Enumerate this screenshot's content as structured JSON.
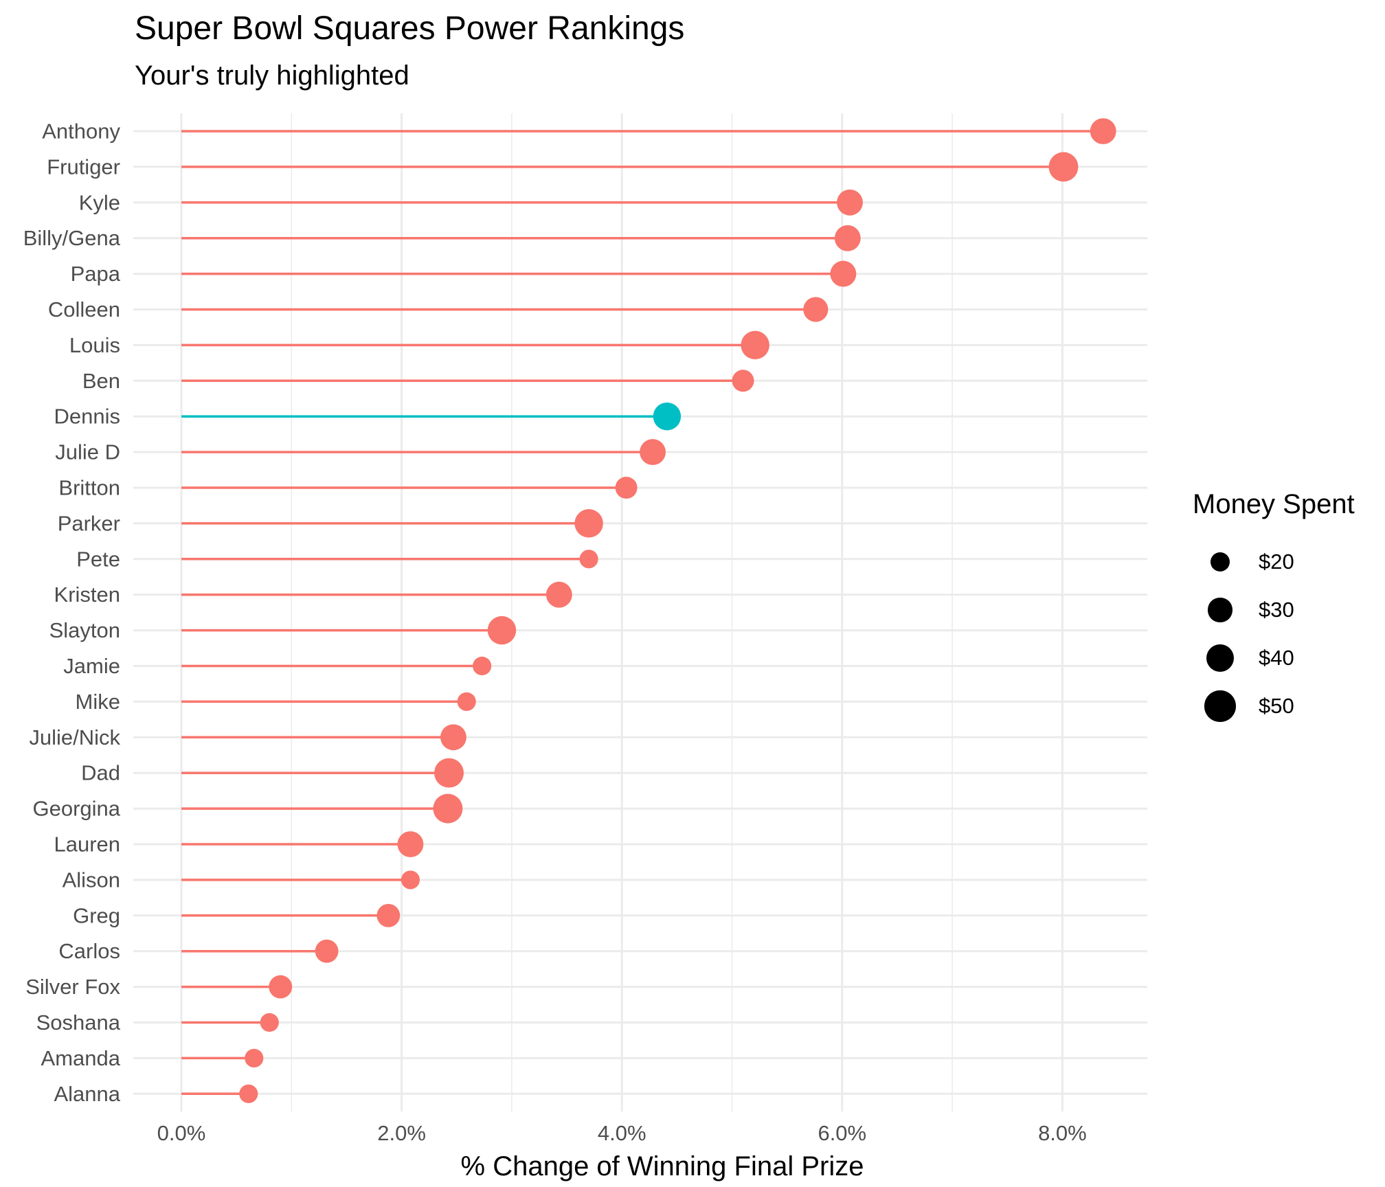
{
  "chart_data": {
    "type": "lollipop",
    "title": "Super Bowl Squares Power Rankings",
    "subtitle": "Your's truly highlighted",
    "xlabel": "% Change of Winning Final Prize",
    "ylabel": "",
    "xlim": [
      0,
      0.088
    ],
    "x_ticks": [
      0,
      0.02,
      0.04,
      0.06,
      0.08
    ],
    "x_tick_labels": [
      "0.0%",
      "2.0%",
      "4.0%",
      "6.0%",
      "8.0%"
    ],
    "grid": true,
    "colors": {
      "default": "#F8766D",
      "highlight": "#00BFC4",
      "grid": "#EBEBEB"
    },
    "categories": [
      "Anthony",
      "Frutiger",
      "Kyle",
      "Billy/Gena",
      "Papa",
      "Colleen",
      "Louis",
      "Ben",
      "Dennis",
      "Julie D",
      "Britton",
      "Parker",
      "Pete",
      "Kristen",
      "Slayton",
      "Jamie",
      "Mike",
      "Julie/Nick",
      "Dad",
      "Georgina",
      "Lauren",
      "Alison",
      "Greg",
      "Carlos",
      "Silver Fox",
      "Soshana",
      "Amanda",
      "Alanna"
    ],
    "values": [
      0.0837,
      0.0801,
      0.0607,
      0.0605,
      0.0601,
      0.0576,
      0.0521,
      0.051,
      0.0441,
      0.0428,
      0.0404,
      0.037,
      0.037,
      0.0343,
      0.0291,
      0.0273,
      0.0259,
      0.0247,
      0.0243,
      0.0242,
      0.0208,
      0.0208,
      0.0188,
      0.0132,
      0.009,
      0.008,
      0.0066,
      0.0061
    ],
    "money_spent": [
      35,
      45,
      35,
      35,
      35,
      32,
      42,
      25,
      40,
      35,
      25,
      42,
      18,
      35,
      42,
      18,
      18,
      35,
      45,
      45,
      35,
      18,
      28,
      28,
      28,
      18,
      18,
      18
    ],
    "highlighted": [
      "Dennis"
    ],
    "legend": {
      "title": "Money Spent",
      "position": "right",
      "items": [
        {
          "label": "$20",
          "value": 20
        },
        {
          "label": "$30",
          "value": 30
        },
        {
          "label": "$40",
          "value": 40
        },
        {
          "label": "$50",
          "value": 50
        }
      ]
    }
  }
}
